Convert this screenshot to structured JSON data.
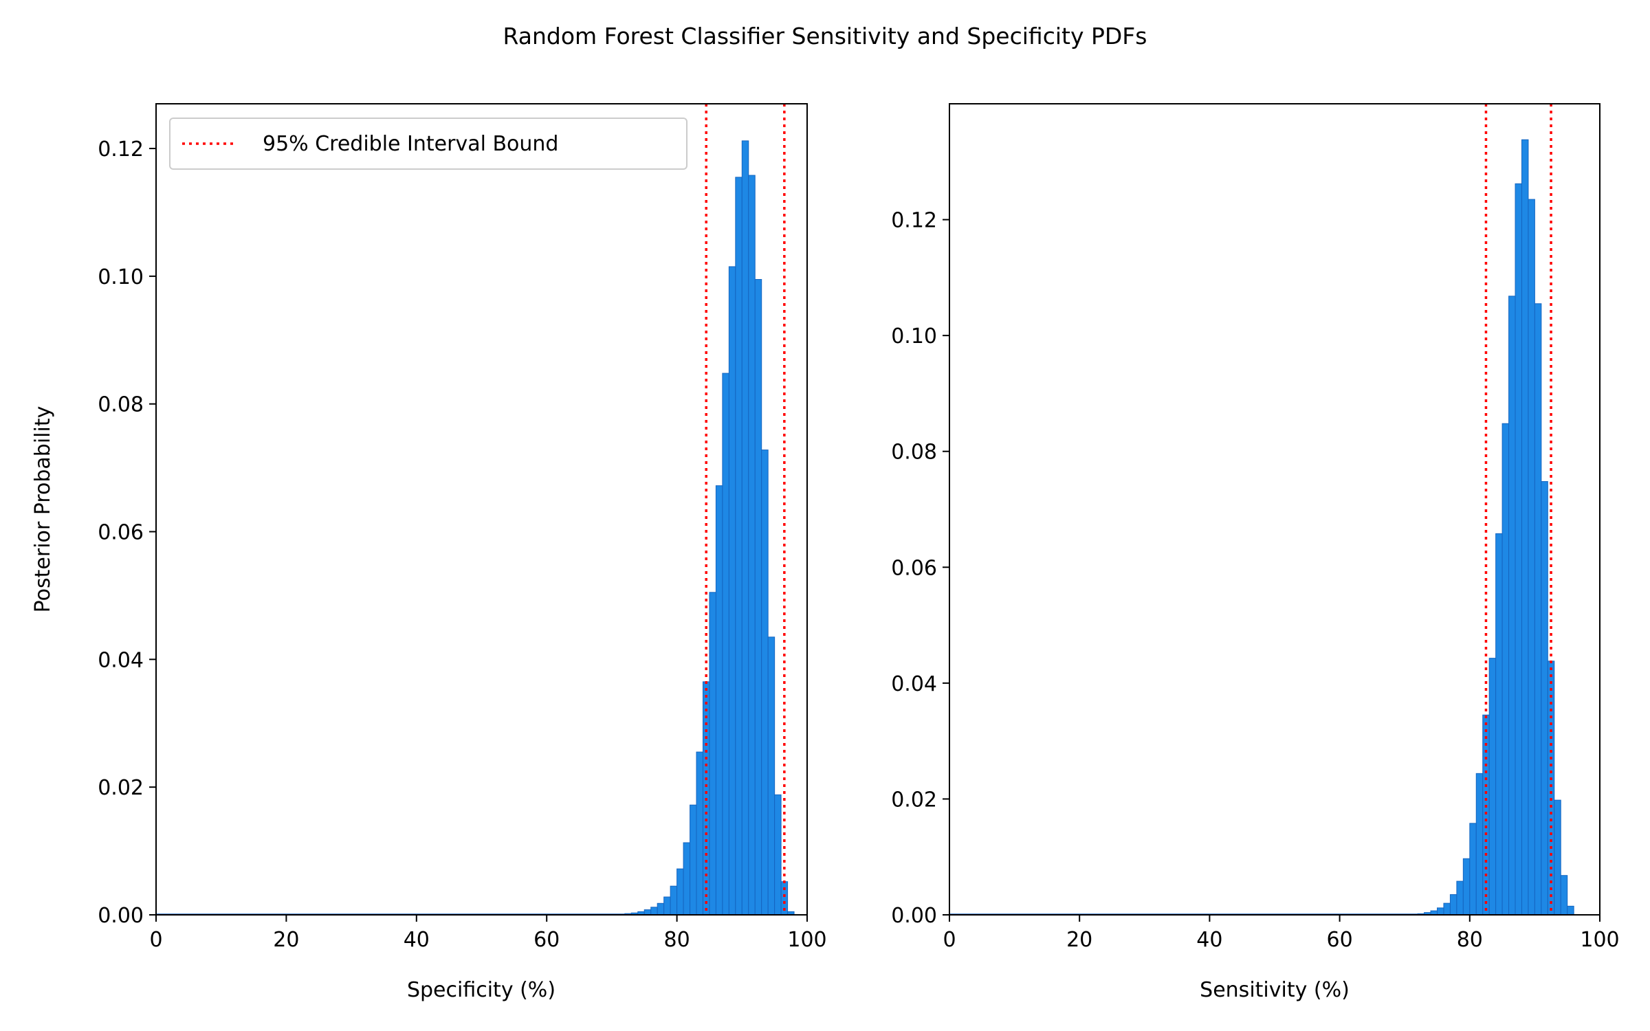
{
  "suptitle": "Random Forest Classifier Sensitivity and Specificity PDFs",
  "colors": {
    "bar_fill": "#1e88e5",
    "bar_edge": "#1565c0",
    "interval_line": "#ff0000",
    "axes": "#000000",
    "background": "#ffffff"
  },
  "chart_data": [
    {
      "type": "bar",
      "title": "",
      "xlabel": "Specificity (%)",
      "ylabel": "Posterior Probability",
      "xlim": [
        0,
        100
      ],
      "ylim": [
        0,
        0.127
      ],
      "xticks": [
        0,
        20,
        40,
        60,
        80,
        100
      ],
      "xtick_labels": [
        "0",
        "20",
        "40",
        "60",
        "80",
        "100"
      ],
      "yticks": [
        0,
        0.02,
        0.04,
        0.06,
        0.08,
        0.1,
        0.12
      ],
      "ytick_labels": [
        "0.00",
        "0.02",
        "0.04",
        "0.06",
        "0.08",
        "0.10",
        "0.12"
      ],
      "grid": false,
      "bin_width": 1,
      "x": [
        72,
        73,
        74,
        75,
        76,
        77,
        78,
        79,
        80,
        81,
        82,
        83,
        84,
        85,
        86,
        87,
        88,
        89,
        90,
        91,
        92,
        93,
        94,
        95,
        96,
        97
      ],
      "values": [
        0.0002,
        0.0003,
        0.0005,
        0.0008,
        0.0012,
        0.0018,
        0.0028,
        0.0045,
        0.0072,
        0.0113,
        0.0172,
        0.0255,
        0.0365,
        0.0505,
        0.0672,
        0.0848,
        0.1015,
        0.1155,
        0.1212,
        0.1158,
        0.0995,
        0.0728,
        0.0435,
        0.0188,
        0.0052,
        0.0005
      ],
      "interval_bounds": [
        84.5,
        96.5
      ],
      "legend": {
        "entries": [
          "95% Credible Interval Bound"
        ],
        "placement": "upper-left"
      }
    },
    {
      "type": "bar",
      "title": "",
      "xlabel": "Sensitivity (%)",
      "ylabel": "",
      "xlim": [
        0,
        100
      ],
      "ylim": [
        0,
        0.14
      ],
      "xticks": [
        0,
        20,
        40,
        60,
        80,
        100
      ],
      "xtick_labels": [
        "0",
        "20",
        "40",
        "60",
        "80",
        "100"
      ],
      "yticks": [
        0,
        0.02,
        0.04,
        0.06,
        0.08,
        0.1,
        0.12
      ],
      "ytick_labels": [
        "0.00",
        "0.02",
        "0.04",
        "0.06",
        "0.08",
        "0.10",
        "0.12"
      ],
      "grid": false,
      "bin_width": 1,
      "x": [
        72,
        73,
        74,
        75,
        76,
        77,
        78,
        79,
        80,
        81,
        82,
        83,
        84,
        85,
        86,
        87,
        88,
        89,
        90,
        91,
        92,
        93,
        94,
        95
      ],
      "values": [
        0.0002,
        0.0004,
        0.0007,
        0.0012,
        0.002,
        0.0035,
        0.0058,
        0.0097,
        0.0158,
        0.0244,
        0.0345,
        0.0443,
        0.0658,
        0.0848,
        0.1068,
        0.1262,
        0.1338,
        0.1235,
        0.1055,
        0.0748,
        0.0438,
        0.0198,
        0.0068,
        0.0015
      ],
      "interval_bounds": [
        82.5,
        92.5
      ],
      "legend": null
    }
  ]
}
